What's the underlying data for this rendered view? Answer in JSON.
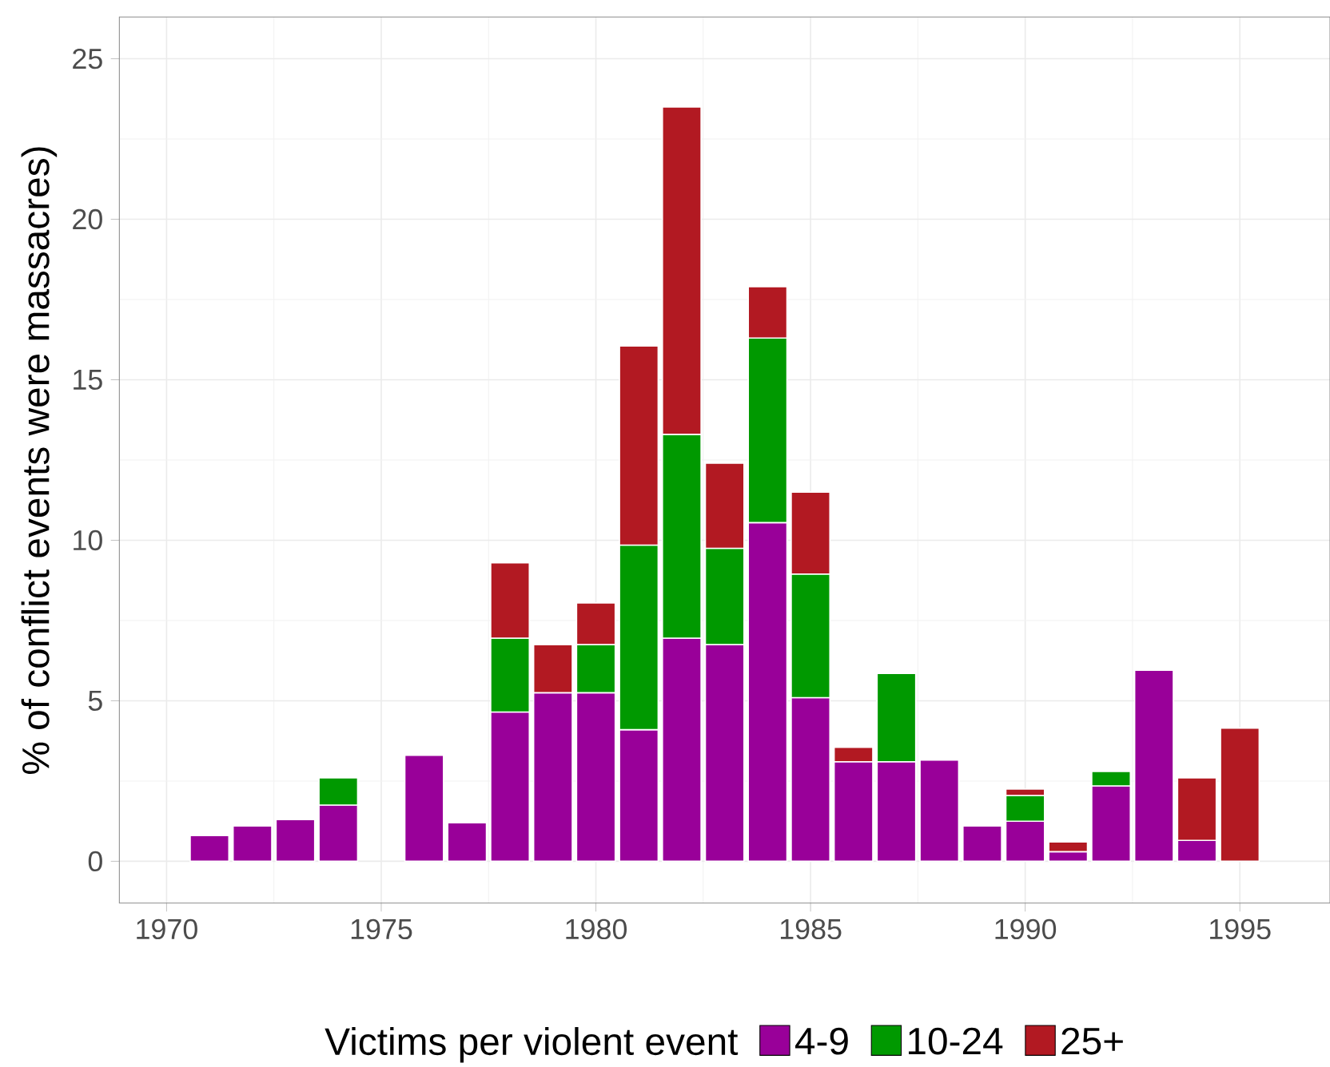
{
  "chart_data": {
    "type": "bar",
    "stacked": true,
    "ylabel": "% of conflict events were massacres)",
    "legend_title": "Victims per violent event",
    "legend": "bottom",
    "grid": true,
    "x": [
      1971,
      1972,
      1973,
      1974,
      1975,
      1976,
      1977,
      1978,
      1979,
      1980,
      1981,
      1982,
      1983,
      1984,
      1985,
      1986,
      1987,
      1988,
      1989,
      1990,
      1991,
      1992,
      1993,
      1994,
      1995
    ],
    "xlim": [
      1968.9,
      1997.1
    ],
    "ylim": [
      -1.3,
      26.3
    ],
    "xticks": [
      1970,
      1975,
      1980,
      1985,
      1990,
      1995
    ],
    "yticks": [
      0,
      5,
      10,
      15,
      20,
      25
    ],
    "series": [
      {
        "name": "4-9",
        "color": "#990099",
        "values": [
          0.8,
          1.1,
          1.3,
          1.75,
          null,
          3.3,
          1.2,
          4.65,
          5.25,
          5.25,
          4.1,
          6.95,
          6.75,
          10.55,
          5.1,
          3.1,
          3.1,
          3.15,
          1.1,
          1.25,
          0.3,
          2.35,
          5.95,
          0.65,
          null
        ]
      },
      {
        "name": "10-24",
        "color": "#009900",
        "values": [
          null,
          null,
          null,
          0.85,
          null,
          null,
          null,
          2.3,
          null,
          1.5,
          5.75,
          6.35,
          3.0,
          5.75,
          3.85,
          null,
          2.75,
          null,
          null,
          0.8,
          null,
          0.45,
          null,
          null,
          null
        ]
      },
      {
        "name": "25+",
        "color": "#b21922",
        "values": [
          null,
          null,
          null,
          null,
          null,
          null,
          null,
          2.35,
          1.5,
          1.3,
          6.2,
          10.2,
          2.65,
          1.6,
          2.55,
          0.45,
          null,
          null,
          null,
          0.2,
          0.3,
          null,
          null,
          1.95,
          4.15
        ]
      }
    ]
  }
}
